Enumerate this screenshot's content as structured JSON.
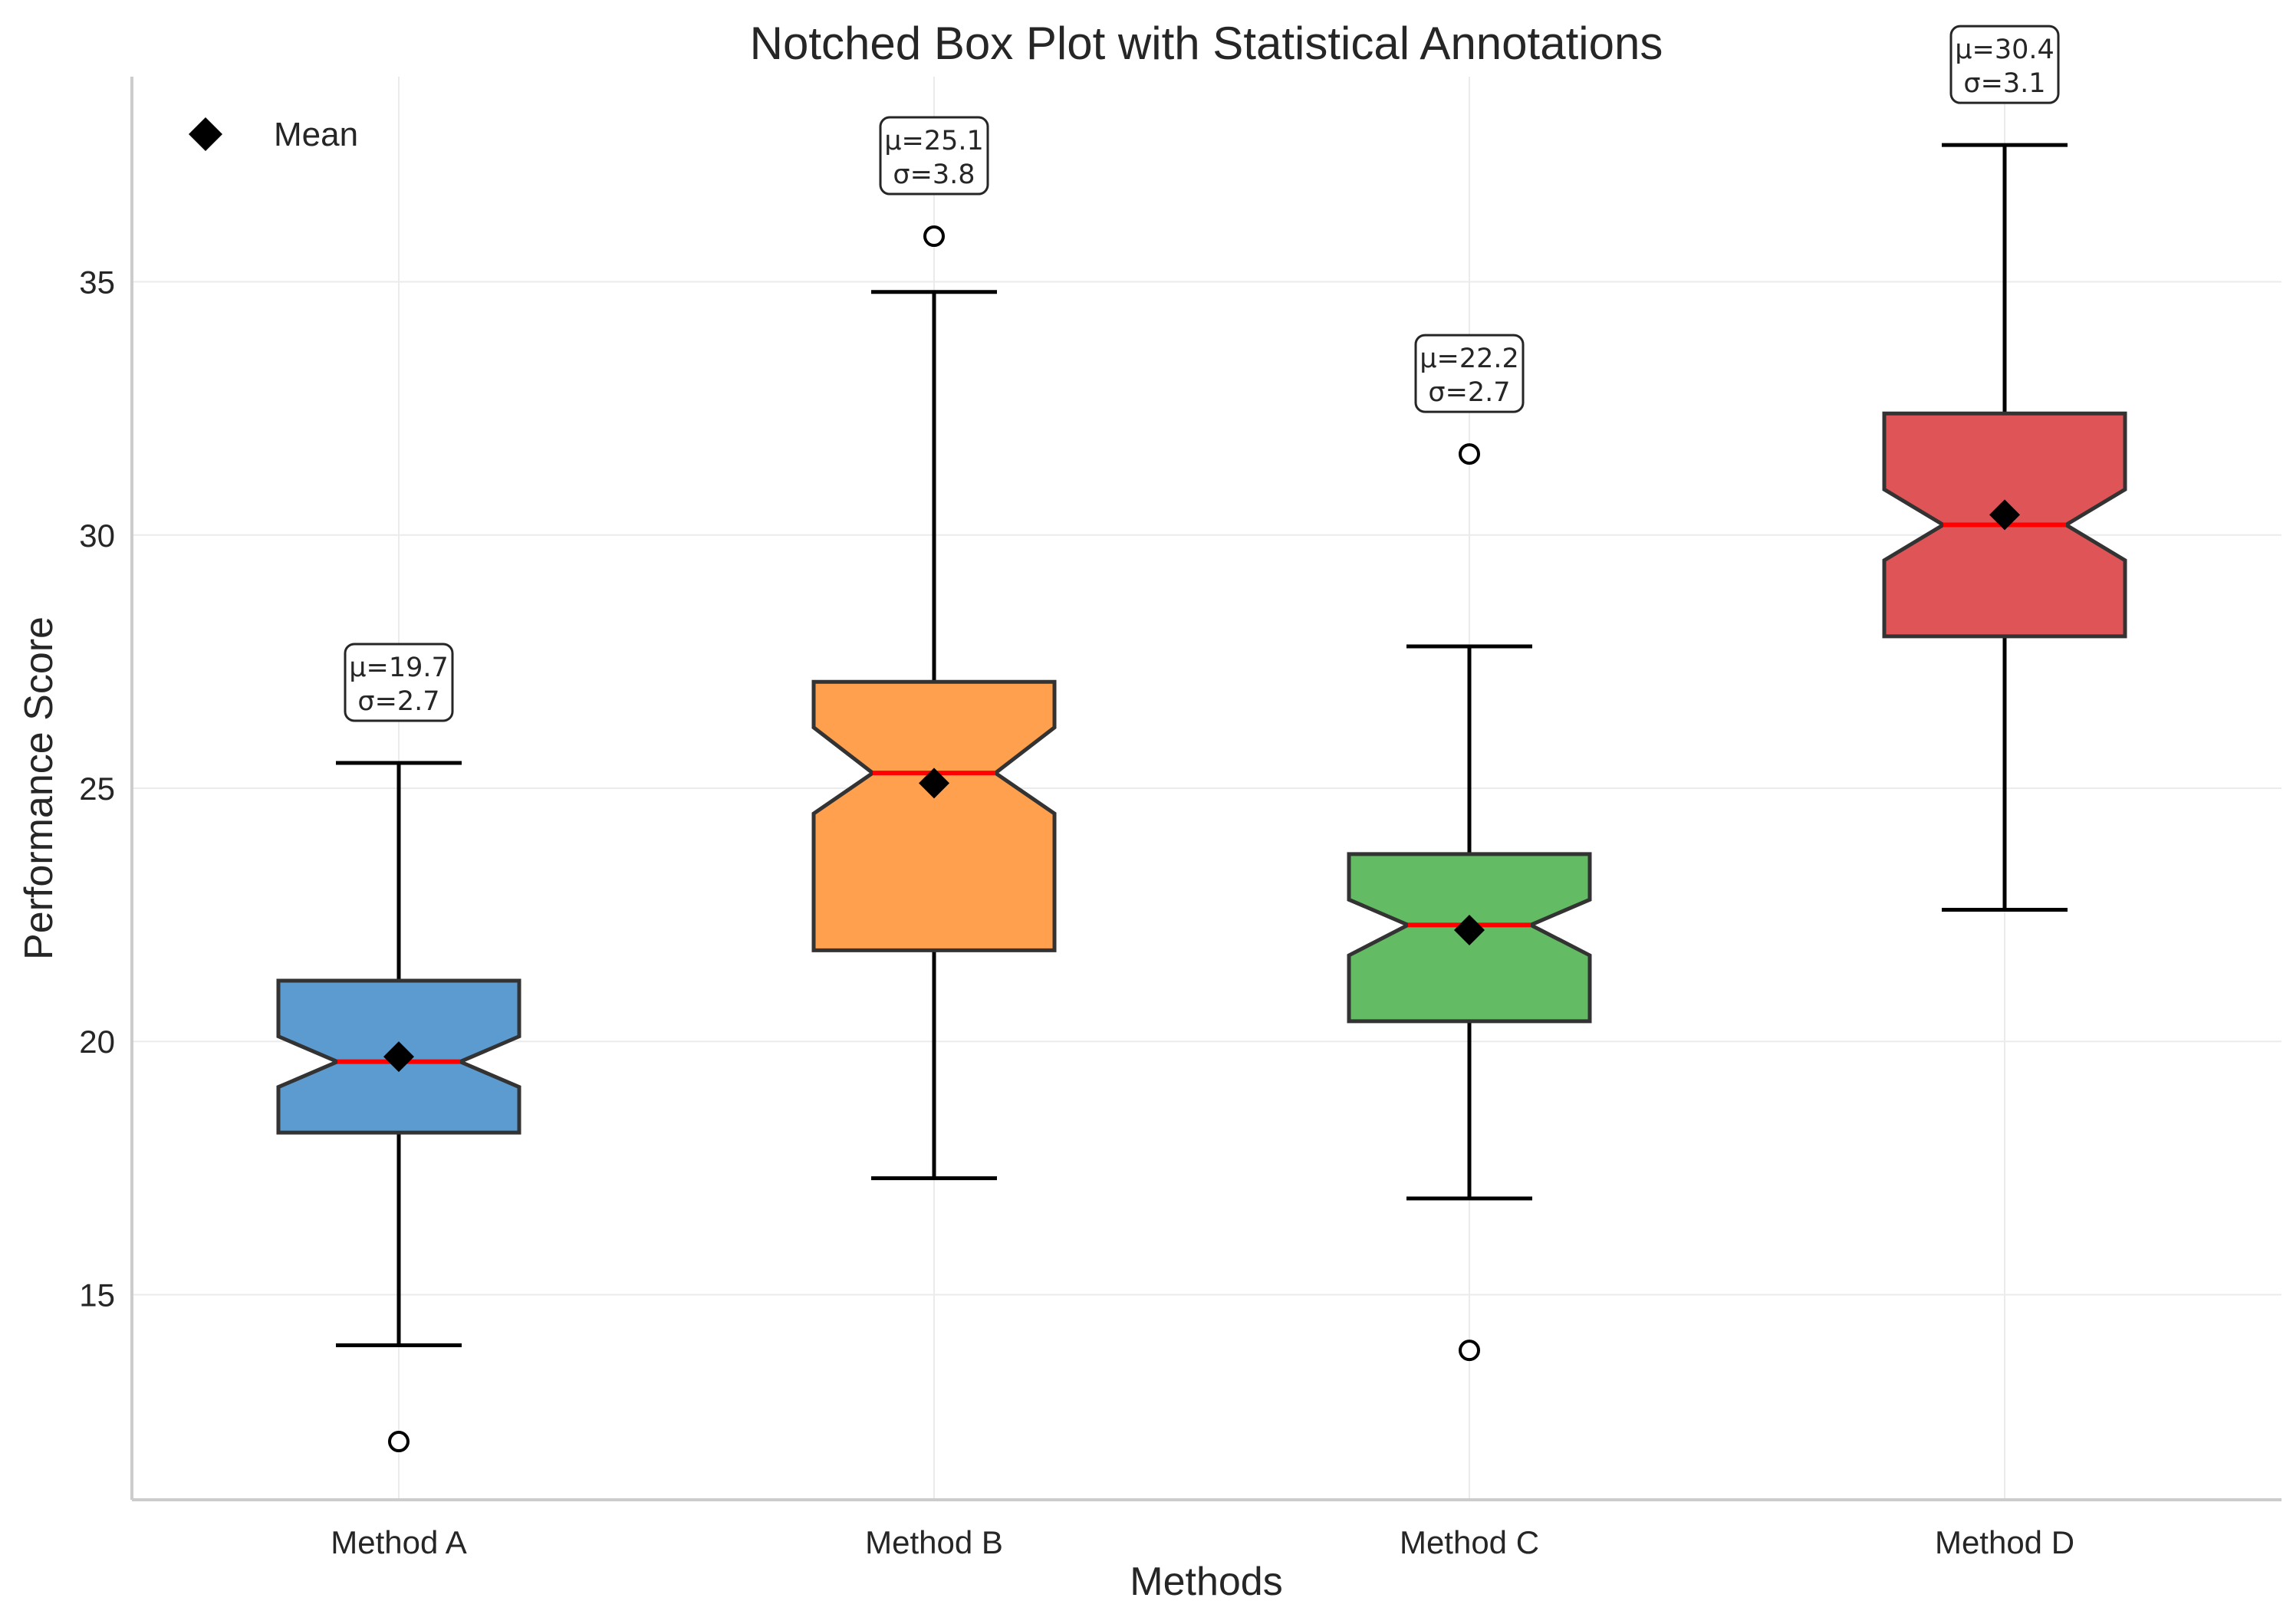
{
  "chart_data": {
    "type": "box",
    "title": "Notched Box Plot with Statistical Annotations",
    "xlabel": "Methods",
    "ylabel": "Performance Score",
    "ylim": [
      10.95,
      39.05
    ],
    "yticks": [
      15,
      20,
      25,
      30,
      35
    ],
    "grid": true,
    "legend": {
      "position": "top-left",
      "entries": [
        {
          "label": "Mean",
          "marker": "diamond",
          "color": "#000000"
        }
      ]
    },
    "median_color": "#ff0000",
    "box_edge_color": "#333333",
    "categories": [
      "Method A",
      "Method B",
      "Method C",
      "Method D"
    ],
    "series": [
      {
        "category": "Method A",
        "color": "#5b9bd0",
        "whisker_low": 14.0,
        "q1": 18.2,
        "median": 19.6,
        "q3": 21.2,
        "whisker_high": 25.5,
        "notch_low": 19.1,
        "notch_high": 20.1,
        "mean": 19.7,
        "outliers": [
          12.1
        ],
        "annotation": {
          "mean_text": "μ=19.7",
          "sd_text": "σ=2.7"
        }
      },
      {
        "category": "Method B",
        "color": "#ffa04f",
        "whisker_low": 17.3,
        "q1": 21.8,
        "median": 25.3,
        "q3": 27.1,
        "whisker_high": 34.8,
        "notch_low": 24.5,
        "notch_high": 26.2,
        "mean": 25.1,
        "outliers": [
          35.9
        ],
        "annotation": {
          "mean_text": "μ=25.1",
          "sd_text": "σ=3.8"
        }
      },
      {
        "category": "Method C",
        "color": "#63bb63",
        "whisker_low": 16.9,
        "q1": 20.4,
        "median": 22.3,
        "q3": 23.7,
        "whisker_high": 27.8,
        "notch_low": 21.7,
        "notch_high": 22.8,
        "mean": 22.2,
        "outliers": [
          31.6,
          13.9
        ],
        "annotation": {
          "mean_text": "μ=22.2",
          "sd_text": "σ=2.7"
        }
      },
      {
        "category": "Method D",
        "color": "#df5557",
        "whisker_low": 22.6,
        "q1": 28.0,
        "median": 30.2,
        "q3": 32.4,
        "whisker_high": 37.7,
        "notch_low": 29.5,
        "notch_high": 30.9,
        "mean": 30.4,
        "outliers": [],
        "annotation": {
          "mean_text": "μ=30.4",
          "sd_text": "σ=3.1"
        }
      }
    ]
  }
}
